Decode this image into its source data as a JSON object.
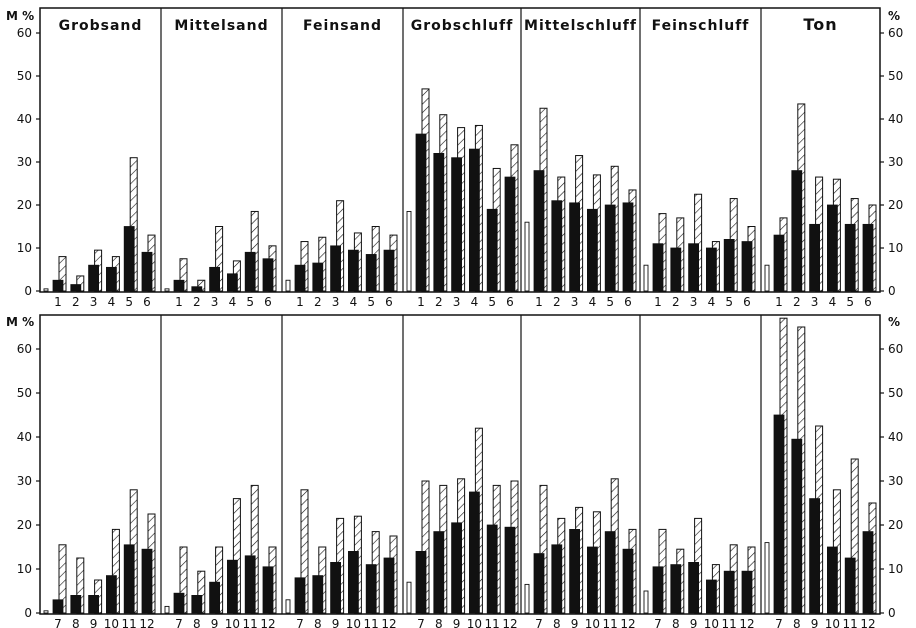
{
  "figure": {
    "left_unit_label": "M %",
    "right_unit_label": "%"
  },
  "chart_data": [
    {
      "type": "bar",
      "panel": "top",
      "groups": [
        "Grobsand",
        "Mittelsand",
        "Feinsand",
        "Grobschluff",
        "Mittelschluff",
        "Feinschluff",
        "Ton"
      ],
      "categories": [
        "1",
        "2",
        "3",
        "4",
        "5",
        "6"
      ],
      "ylim": [
        0,
        60
      ],
      "yticks": [
        0,
        10,
        20,
        30,
        40,
        50,
        60
      ],
      "grid": false,
      "series": [
        {
          "style": "solid",
          "values": [
            [
              2.5,
              1.5,
              6,
              5.5,
              15,
              9
            ],
            [
              2.5,
              1,
              5.5,
              4,
              9,
              7.5
            ],
            [
              6,
              6.5,
              10.5,
              9.5,
              8.5,
              9.5
            ],
            [
              36.5,
              32,
              31,
              33,
              19,
              26.5
            ],
            [
              28,
              21,
              20.5,
              19,
              20,
              20.5
            ],
            [
              11,
              10,
              11,
              10,
              12,
              11.5
            ],
            [
              13,
              28,
              15.5,
              20,
              15.5,
              15.5
            ]
          ]
        },
        {
          "style": "hatched",
          "values": [
            [
              8,
              3.5,
              9.5,
              8,
              31,
              13
            ],
            [
              7.5,
              2.5,
              15,
              7,
              18.5,
              10.5
            ],
            [
              11.5,
              12.5,
              21,
              13.5,
              15,
              13
            ],
            [
              47,
              41,
              38,
              38.5,
              28.5,
              34
            ],
            [
              42.5,
              26.5,
              31.5,
              27,
              29,
              23.5
            ],
            [
              18,
              17,
              22.5,
              11.5,
              21.5,
              15
            ],
            [
              17,
              43.5,
              26.5,
              26,
              21.5,
              20
            ]
          ]
        },
        {
          "style": "outline",
          "values": [
            [
              0.5,
              0,
              0,
              0,
              0,
              0
            ],
            [
              0.5,
              0,
              0,
              0,
              0,
              0
            ],
            [
              2.5,
              0,
              0,
              0,
              0,
              0
            ],
            [
              18.5,
              0,
              0,
              0,
              0,
              0
            ],
            [
              16,
              0,
              0,
              0,
              0,
              0
            ],
            [
              6,
              0,
              0,
              0,
              0,
              0
            ],
            [
              6,
              0,
              0,
              0,
              0,
              0
            ]
          ]
        }
      ]
    },
    {
      "type": "bar",
      "panel": "bottom",
      "groups": [
        "Grobsand",
        "Mittelsand",
        "Feinsand",
        "Grobschluff",
        "Mittelschluff",
        "Feinschluff",
        "Ton"
      ],
      "categories": [
        "7",
        "8",
        "9",
        "10",
        "11",
        "12"
      ],
      "ylim": [
        0,
        65
      ],
      "yticks": [
        0,
        10,
        20,
        30,
        40,
        50,
        60
      ],
      "grid": false,
      "series": [
        {
          "style": "solid",
          "values": [
            [
              3,
              4,
              4,
              8.5,
              15.5,
              14.5
            ],
            [
              4.5,
              4,
              7,
              12,
              13,
              10.5
            ],
            [
              8,
              8.5,
              11.5,
              14,
              11,
              12.5
            ],
            [
              14,
              18.5,
              20.5,
              27.5,
              20,
              19.5
            ],
            [
              13.5,
              15.5,
              19,
              15,
              18.5,
              14.5
            ],
            [
              10.5,
              11,
              11.5,
              7.5,
              9.5,
              9.5
            ],
            [
              45,
              39.5,
              26,
              15,
              12.5,
              18.5
            ]
          ]
        },
        {
          "style": "hatched",
          "values": [
            [
              15.5,
              12.5,
              7.5,
              19,
              28,
              22.5
            ],
            [
              15,
              9.5,
              15,
              26,
              29,
              15
            ],
            [
              28,
              15,
              21.5,
              22,
              18.5,
              17.5
            ],
            [
              30,
              29,
              30.5,
              42,
              29,
              30
            ],
            [
              29,
              21.5,
              24,
              23,
              30.5,
              19
            ],
            [
              19,
              14.5,
              21.5,
              11,
              15.5,
              15
            ],
            [
              67,
              65,
              42.5,
              28,
              35,
              25
            ]
          ]
        },
        {
          "style": "outline",
          "values": [
            [
              0.5,
              0,
              0,
              0,
              0,
              0
            ],
            [
              1.5,
              0,
              0,
              0,
              0,
              0
            ],
            [
              3,
              0,
              0,
              0,
              0,
              0
            ],
            [
              7,
              0,
              0,
              0,
              0,
              0
            ],
            [
              6.5,
              0,
              0,
              0,
              0,
              0
            ],
            [
              5,
              0,
              0,
              0,
              0,
              0
            ],
            [
              16,
              0,
              0,
              0,
              0,
              0
            ]
          ]
        }
      ]
    }
  ]
}
